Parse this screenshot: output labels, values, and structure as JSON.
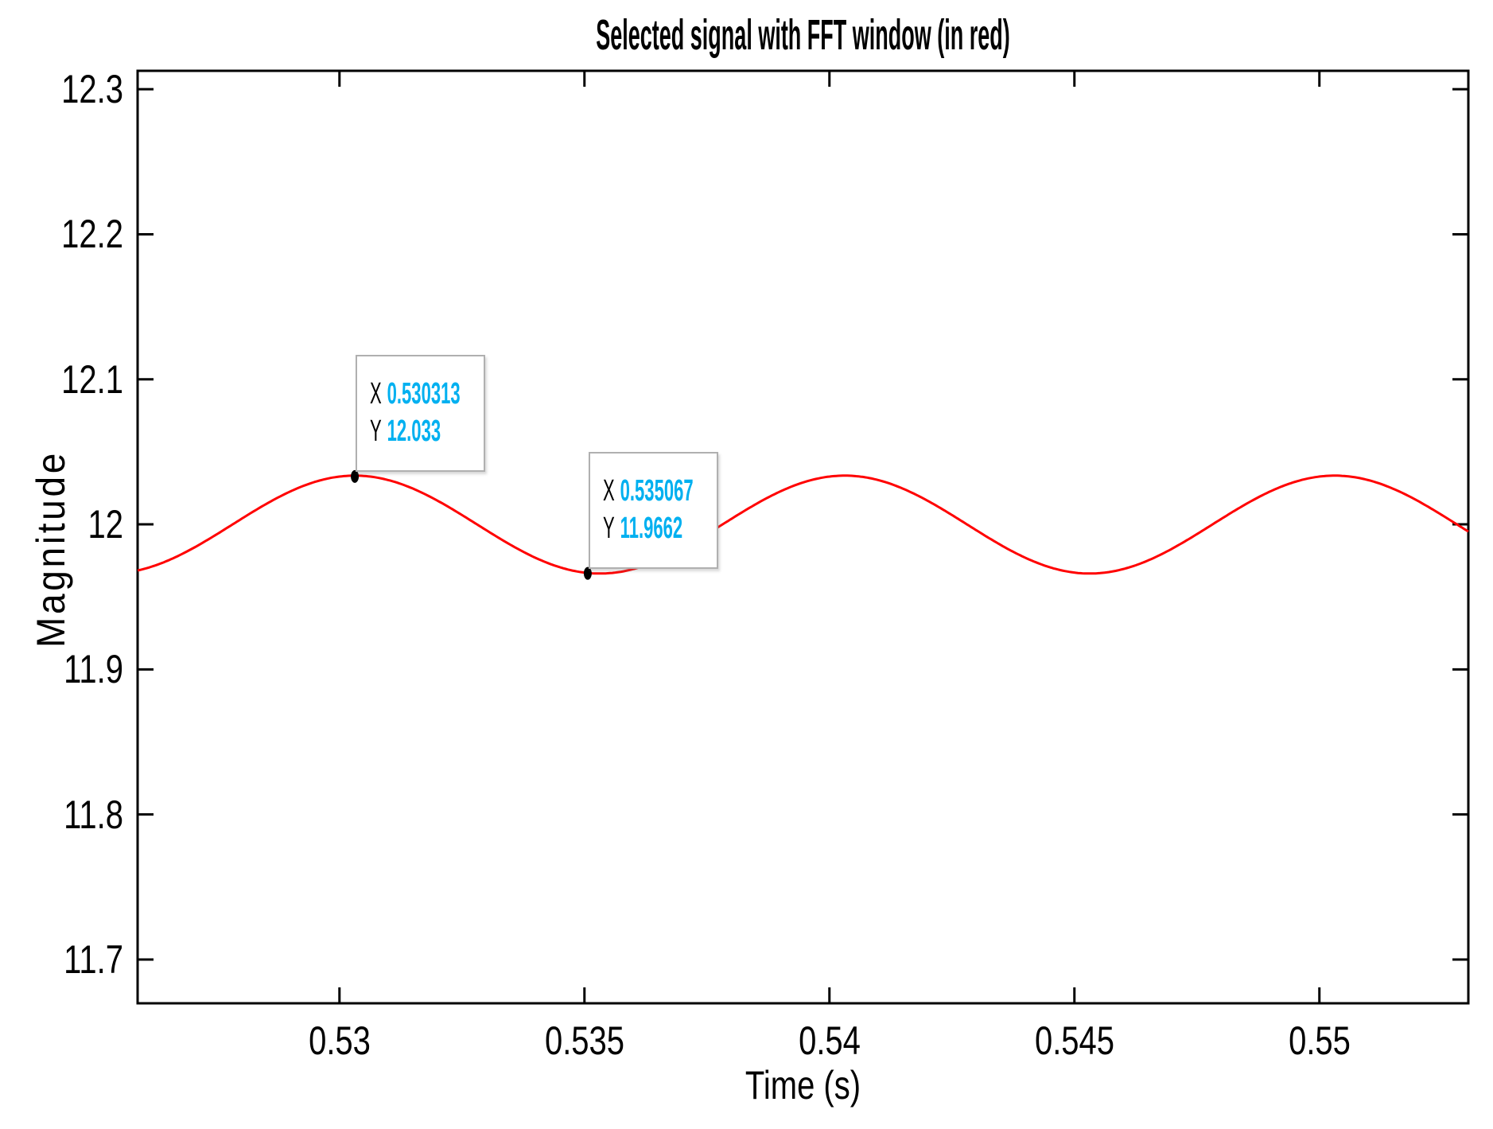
{
  "figure": {
    "background": "#ffffff",
    "axis_color": "#000000"
  },
  "chart_data": {
    "type": "line",
    "title": "Selected signal with FFT window (in red)",
    "xlabel": "Time (s)",
    "ylabel": "Magnitude",
    "grid": false,
    "legend": null,
    "xlim": [
      0.52588,
      0.55304
    ],
    "ylim": [
      11.6698,
      12.3127
    ],
    "x_ticks": {
      "values": [
        0.53,
        0.535,
        0.54,
        0.545,
        0.55
      ],
      "labels": [
        "0.53",
        "0.535",
        "0.54",
        "0.545",
        "0.55"
      ]
    },
    "y_ticks": {
      "values": [
        11.7,
        11.8,
        11.9,
        12.0,
        12.1,
        12.2,
        12.3
      ],
      "labels": [
        "11.7",
        "11.8",
        "11.9",
        "12",
        "12.1",
        "12.2",
        "12.3"
      ]
    },
    "series": [
      {
        "name": "selected signal (FFT window)",
        "color": "#ff0000",
        "waveform": {
          "shape": "sine",
          "mean": 11.99985,
          "amplitude": 0.03375,
          "period_s": 0.01,
          "peak_t": 0.530313
        }
      }
    ],
    "data_points": [
      {
        "x": 0.530313,
        "y": 12.033
      },
      {
        "x": 0.535067,
        "y": 11.9662
      }
    ],
    "datatips": [
      {
        "x_label": "X",
        "x_text": "0.530313",
        "y_label": "Y",
        "y_text": "12.033",
        "x": 0.530313,
        "y": 12.033
      },
      {
        "x_label": "X",
        "x_text": "0.535067",
        "y_label": "Y",
        "y_text": "11.9662",
        "x": 0.535067,
        "y": 11.9662
      }
    ],
    "datatip_value_color": "#00b0f0",
    "datatip_label_color": "#000000",
    "marker_color": "#000000"
  }
}
